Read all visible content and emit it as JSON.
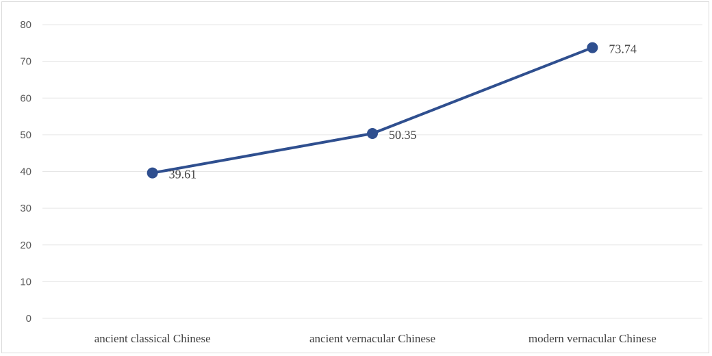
{
  "chart_data": {
    "type": "line",
    "categories": [
      "ancient classical Chinese",
      "ancient vernacular Chinese",
      "modern vernacular Chinese"
    ],
    "series": [
      {
        "values": [
          39.61,
          50.35,
          73.74
        ],
        "data_labels": [
          "39.61",
          "50.35",
          "73.74"
        ],
        "color": "#2f4f8f"
      }
    ],
    "ylim": [
      0,
      80
    ],
    "yticks": [
      0,
      10,
      20,
      30,
      40,
      50,
      60,
      70,
      80
    ],
    "ytick_labels": [
      "0",
      "10",
      "20",
      "30",
      "40",
      "50",
      "60",
      "70",
      "80"
    ],
    "grid": true,
    "gridline_color": "#e6e6e6",
    "markers": true
  }
}
